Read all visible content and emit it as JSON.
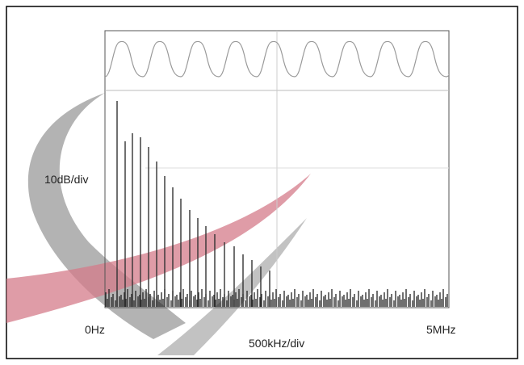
{
  "labels": {
    "y_scale": "10dB/div",
    "x_start": "0Hz",
    "x_scale": "500kHz/div",
    "x_end": "5MHz"
  }
}
